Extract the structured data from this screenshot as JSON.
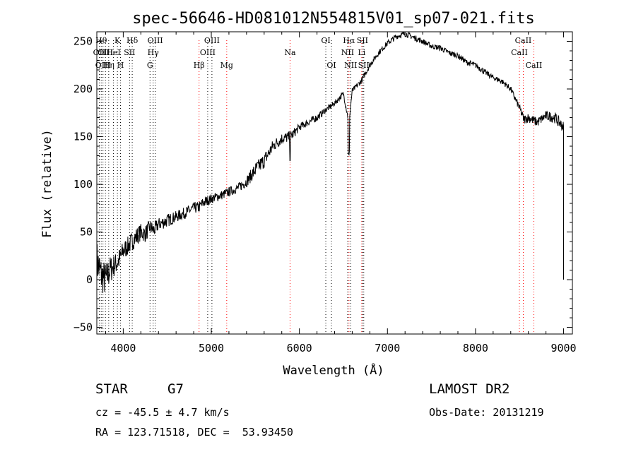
{
  "chart_data": {
    "type": "line",
    "title": "spec-56646-HD081012N554815V01_sp07-021.fits",
    "xlabel": "Wavelength (Å)",
    "ylabel": "Flux (relative)",
    "xlim": [
      3700,
      9100
    ],
    "ylim": [
      -57,
      260
    ],
    "x_ticks": [
      4000,
      5000,
      6000,
      7000,
      8000,
      9000
    ],
    "y_ticks": [
      -50,
      0,
      50,
      100,
      150,
      200,
      250
    ],
    "grid": false,
    "series": [
      {
        "color": "#000000",
        "x": [
          3700,
          3750,
          3800,
          3850,
          3900,
          3950,
          4000,
          4050,
          4100,
          4150,
          4200,
          4250,
          4300,
          4350,
          4400,
          4450,
          4500,
          4600,
          4700,
          4800,
          4861,
          4900,
          5000,
          5100,
          5200,
          5300,
          5400,
          5500,
          5600,
          5700,
          5800,
          5900,
          6000,
          6100,
          6200,
          6300,
          6400,
          6500,
          6563,
          6600,
          6700,
          6800,
          6900,
          7000,
          7100,
          7200,
          7300,
          7400,
          7500,
          7600,
          7700,
          7800,
          7900,
          8000,
          8100,
          8200,
          8300,
          8400,
          8500,
          8550,
          8600,
          8700,
          8800,
          8900,
          8950,
          9000
        ],
        "y": [
          20,
          5,
          0,
          10,
          15,
          20,
          30,
          35,
          40,
          45,
          50,
          48,
          55,
          52,
          58,
          60,
          62,
          66,
          70,
          75,
          76,
          80,
          85,
          88,
          92,
          96,
          103,
          115,
          125,
          140,
          148,
          150,
          160,
          165,
          170,
          178,
          185,
          195,
          165,
          198,
          208,
          225,
          238,
          248,
          255,
          258,
          254,
          250,
          245,
          243,
          238,
          235,
          228,
          225,
          218,
          212,
          208,
          200,
          180,
          168,
          170,
          165,
          172,
          170,
          165,
          160
        ],
        "noise": [
          22,
          20,
          18,
          15,
          12,
          12,
          11,
          10,
          10,
          10,
          9,
          9,
          8,
          8,
          7,
          7,
          7,
          6,
          6,
          6,
          6,
          6,
          5,
          5,
          5,
          5,
          6,
          8,
          8,
          7,
          6,
          6,
          4,
          4,
          4,
          3,
          3,
          3,
          3,
          3,
          3,
          3,
          3,
          3,
          3,
          3,
          3,
          3,
          3,
          3,
          3,
          3,
          3,
          3,
          3,
          3,
          3,
          3,
          4,
          5,
          5,
          5,
          5,
          6,
          6,
          6
        ]
      }
    ],
    "lines": [
      {
        "x": 3728,
        "label": "OII",
        "row": 2,
        "color": "#000000"
      },
      {
        "x": 3750,
        "label": "Hθ",
        "row": 1,
        "color": "#000000"
      },
      {
        "x": 3770,
        "label": "OIII",
        "row": 3,
        "color": "#000000"
      },
      {
        "x": 3798,
        "label": "OIII",
        "row": 2,
        "color": "#000000"
      },
      {
        "x": 3835,
        "label": "Hη",
        "row": 3,
        "color": "#000000"
      },
      {
        "x": 3889,
        "label": "HeI",
        "row": 2,
        "color": "#000000"
      },
      {
        "x": 3934,
        "label": "K",
        "row": 1,
        "color": "#000000"
      },
      {
        "x": 3969,
        "label": "H",
        "row": 3,
        "color": "#000000"
      },
      {
        "x": 4072,
        "label": "SII",
        "row": 2,
        "color": "#000000"
      },
      {
        "x": 4102,
        "label": "Hδ",
        "row": 1,
        "color": "#000000"
      },
      {
        "x": 4304,
        "label": "G",
        "row": 3,
        "color": "#000000"
      },
      {
        "x": 4340,
        "label": "Hγ",
        "row": 2,
        "color": "#000000"
      },
      {
        "x": 4363,
        "label": "OIII",
        "row": 1,
        "color": "#000000"
      },
      {
        "x": 4861,
        "label": "Hβ",
        "row": 3,
        "color": "#ff0000"
      },
      {
        "x": 4959,
        "label": "OIII",
        "row": 2,
        "color": "#000000"
      },
      {
        "x": 5007,
        "label": "OIII",
        "row": 1,
        "color": "#000000"
      },
      {
        "x": 5175,
        "label": "Mg",
        "row": 3,
        "color": "#ff0000"
      },
      {
        "x": 5894,
        "label": "Na",
        "row": 2,
        "color": "#ff0000"
      },
      {
        "x": 6300,
        "label": "OI",
        "row": 1,
        "color": "#000000"
      },
      {
        "x": 6364,
        "label": "OI",
        "row": 3,
        "color": "#000000"
      },
      {
        "x": 6548,
        "label": "NII",
        "row": 2,
        "color": "#000000"
      },
      {
        "x": 6563,
        "label": "Hα",
        "row": 1,
        "color": "#ff0000"
      },
      {
        "x": 6583,
        "label": "NII",
        "row": 3,
        "color": "#000000"
      },
      {
        "x": 6708,
        "label": "Li",
        "row": 2,
        "color": "#ff0000"
      },
      {
        "x": 6716,
        "label": "SII",
        "row": 1,
        "color": "#000000"
      },
      {
        "x": 6731,
        "label": "SII",
        "row": 3,
        "color": "#000000"
      },
      {
        "x": 8498,
        "label": "CaII",
        "row": 2,
        "color": "#ff0000"
      },
      {
        "x": 8542,
        "label": "CaII",
        "row": 1,
        "color": "#ff0000"
      },
      {
        "x": 8662,
        "label": "CaII",
        "row": 3,
        "color": "#ff0000"
      }
    ]
  },
  "info": {
    "class_label": "STAR",
    "subclass": "G7",
    "survey": "LAMOST DR2",
    "redshift": "cz = -45.5 ± 4.7 km/s",
    "obs_date": "Obs-Date: 20131219",
    "coords": "RA = 123.71518, DEC =  53.93450"
  }
}
